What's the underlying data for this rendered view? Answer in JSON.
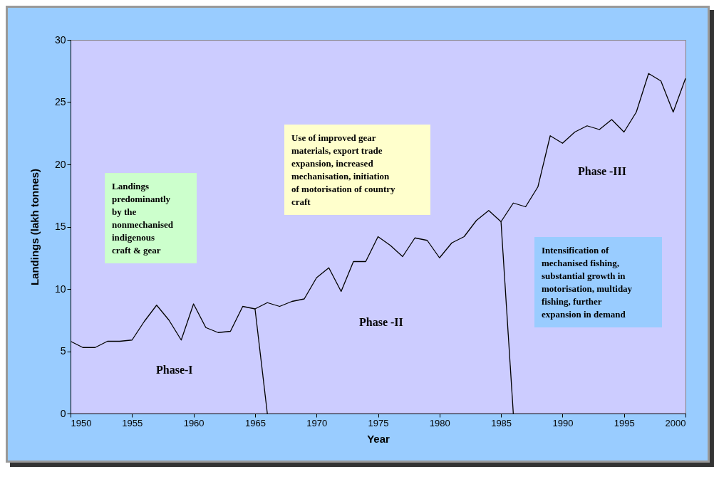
{
  "chart_data": {
    "type": "line",
    "xlabel": "Year",
    "ylabel": "Landings (lakh tonnes)",
    "xlim": [
      1950,
      2000
    ],
    "xticks": [
      1950,
      1955,
      1960,
      1965,
      1970,
      1975,
      1980,
      1985,
      1990,
      1995,
      2000
    ],
    "ylim": [
      0,
      30
    ],
    "yticks": [
      0,
      5,
      10,
      15,
      20,
      25,
      30
    ],
    "grid": false,
    "series": [
      {
        "color": "#000000",
        "x": [
          1950,
          1951,
          1952,
          1953,
          1954,
          1955,
          1956,
          1957,
          1958,
          1959,
          1960,
          1961,
          1962,
          1963,
          1964,
          1965,
          1966,
          1967,
          1968,
          1969,
          1970,
          1971,
          1972,
          1973,
          1974,
          1975,
          1976,
          1977,
          1978,
          1979,
          1980,
          1981,
          1982,
          1983,
          1984,
          1985,
          1986,
          1987,
          1988,
          1989,
          1990,
          1991,
          1992,
          1993,
          1994,
          1995,
          1996,
          1997,
          1998,
          1999,
          2000
        ],
        "values": [
          5.8,
          5.3,
          5.3,
          5.8,
          5.8,
          5.9,
          7.4,
          8.7,
          7.5,
          5.9,
          8.8,
          6.9,
          6.5,
          6.6,
          8.6,
          8.4,
          8.9,
          8.6,
          9.0,
          9.2,
          10.9,
          11.7,
          9.8,
          12.2,
          12.2,
          14.2,
          13.5,
          12.6,
          14.1,
          13.9,
          12.5,
          13.7,
          14.2,
          15.5,
          16.3,
          15.4,
          16.9,
          16.6,
          18.2,
          22.3,
          21.7,
          22.6,
          23.1,
          22.8,
          23.6,
          22.6,
          24.2,
          27.3,
          26.7,
          24.2,
          26.9
        ]
      },
      {
        "type": "line",
        "color": "#000000",
        "x": [
          1965,
          1966
        ],
        "values": [
          8.4,
          0
        ]
      },
      {
        "type": "line",
        "color": "#000000",
        "x": [
          1985,
          1986
        ],
        "values": [
          15.4,
          0
        ]
      }
    ],
    "annotations": [
      "Landings\npredominantly\nby the\nnonmechanised\nindigenous\ncraft & gear",
      "Use of improved gear\nmaterials, export trade\nexpansion, increased\nmechanisation, initiation\nof motorisation of country\ncraft",
      "Phase-I",
      "Phase -II",
      "Phase -III",
      "Intensification of\nmechanised fishing,\nsubstantial growth in\nmotorisation, multiday\nfishing, further\nexpansion in demand"
    ]
  }
}
